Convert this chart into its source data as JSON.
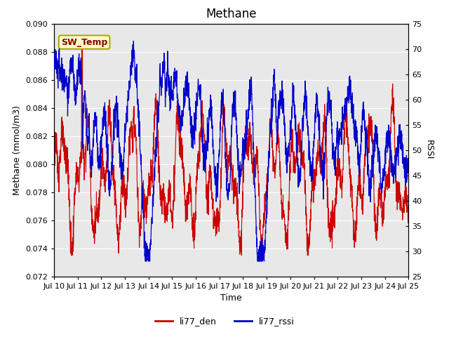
{
  "title": "Methane",
  "xlabel": "Time",
  "ylabel_left": "Methane (mmol/m3)",
  "ylabel_right": "RSSI",
  "ylim_left": [
    0.072,
    0.09
  ],
  "ylim_right": [
    25,
    75
  ],
  "yticks_left": [
    0.072,
    0.074,
    0.076,
    0.078,
    0.08,
    0.082,
    0.084,
    0.086,
    0.088,
    0.09
  ],
  "yticks_right": [
    25,
    30,
    35,
    40,
    45,
    50,
    55,
    60,
    65,
    70,
    75
  ],
  "xtick_labels": [
    "Jul 10",
    "Jul 11",
    "Jul 12",
    "Jul 13",
    "Jul 14",
    "Jul 15",
    "Jul 16",
    "Jul 17",
    "Jul 18",
    "Jul 19",
    "Jul 20",
    "Jul 21",
    "Jul 22",
    "Jul 23",
    "Jul 24",
    "Jul 25"
  ],
  "color_red": "#CC0000",
  "color_blue": "#0000CC",
  "legend_labels": [
    "li77_den",
    "li77_rssi"
  ],
  "annotation_text": "SW_Temp",
  "annotation_bbox_facecolor": "#FFFFCC",
  "annotation_bbox_edgecolor": "#AAAA00",
  "plot_bg_color": "#E8E8E8",
  "fig_bg_color": "#FFFFFF",
  "grid_color": "#FFFFFF",
  "title_fontsize": 12,
  "axis_fontsize": 9,
  "tick_fontsize": 8,
  "legend_fontsize": 9
}
